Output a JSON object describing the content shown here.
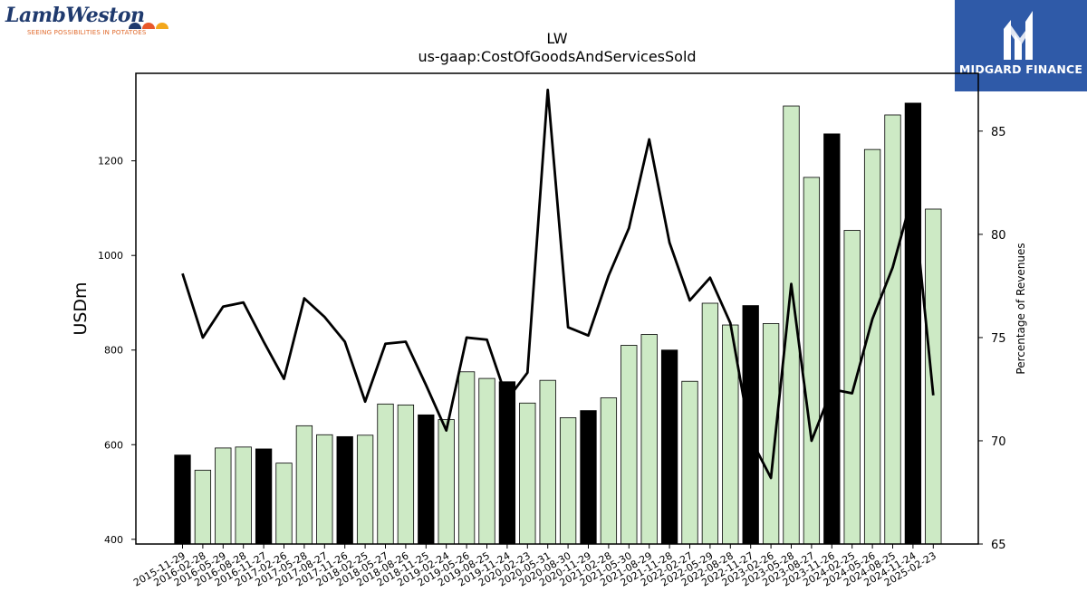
{
  "logos": {
    "lambweston": {
      "name": "LambWeston",
      "tagline": "SEEING POSSIBILITIES IN POTATOES"
    },
    "midgard": {
      "name": "MIDGARD FINANCE"
    }
  },
  "chart_data": {
    "type": "bar",
    "title": "LW",
    "subtitle": "us-gaap:CostOfGoodsAndServicesSold",
    "ylabel": "USDm",
    "y2label": "Percentage of Revenues",
    "ylim": [
      390,
      1385
    ],
    "y2lim": [
      65,
      87.8
    ],
    "yticks": [
      400,
      600,
      800,
      1000,
      1200
    ],
    "y2ticks": [
      65,
      70,
      75,
      80,
      85
    ],
    "categories": [
      "2015-11-29",
      "2016-02-28",
      "2016-05-29",
      "2016-08-28",
      "2016-11-27",
      "2017-02-26",
      "2017-05-28",
      "2017-08-27",
      "2017-11-26",
      "2018-02-25",
      "2018-05-27",
      "2018-08-26",
      "2018-11-25",
      "2019-02-24",
      "2019-05-26",
      "2019-08-25",
      "2019-11-24",
      "2020-02-23",
      "2020-05-31",
      "2020-08-30",
      "2020-11-29",
      "2021-02-28",
      "2021-05-30",
      "2021-08-29",
      "2021-11-28",
      "2022-02-27",
      "2022-05-29",
      "2022-08-28",
      "2022-11-27",
      "2023-02-26",
      "2023-05-28",
      "2023-08-27",
      "2023-11-26",
      "2024-02-25",
      "2024-05-26",
      "2024-08-25",
      "2024-11-24",
      "2025-02-23"
    ],
    "series": [
      {
        "type": "bar",
        "values": [
          578,
          546,
          593,
          595,
          591,
          561,
          640,
          621,
          617,
          620,
          686,
          684,
          663,
          653,
          754,
          740,
          733,
          688,
          736,
          657,
          672,
          699,
          810,
          833,
          800,
          734,
          899,
          853,
          894,
          856,
          1316,
          1165,
          1257,
          1053,
          1224,
          1297,
          1322,
          1098
        ],
        "highlight": [
          true,
          false,
          false,
          false,
          true,
          false,
          false,
          false,
          true,
          false,
          false,
          false,
          true,
          false,
          false,
          false,
          true,
          false,
          false,
          false,
          true,
          false,
          false,
          false,
          true,
          false,
          false,
          false,
          true,
          false,
          false,
          false,
          true,
          false,
          false,
          false,
          true,
          false
        ],
        "color": "#cdeac5",
        "highlight_color": "#000000"
      },
      {
        "type": "line",
        "axis": "right",
        "values": [
          78.1,
          75.0,
          76.5,
          76.7,
          74.8,
          73.0,
          76.9,
          76.0,
          74.8,
          71.9,
          74.7,
          74.8,
          72.7,
          70.5,
          75.0,
          74.9,
          72.0,
          73.3,
          87.0,
          75.5,
          75.1,
          78.0,
          80.3,
          84.6,
          79.6,
          76.8,
          77.9,
          75.7,
          70.1,
          68.2,
          77.6,
          70.0,
          72.5,
          72.3,
          75.9,
          78.4,
          82.0,
          72.2
        ],
        "color": "#000000"
      }
    ]
  }
}
